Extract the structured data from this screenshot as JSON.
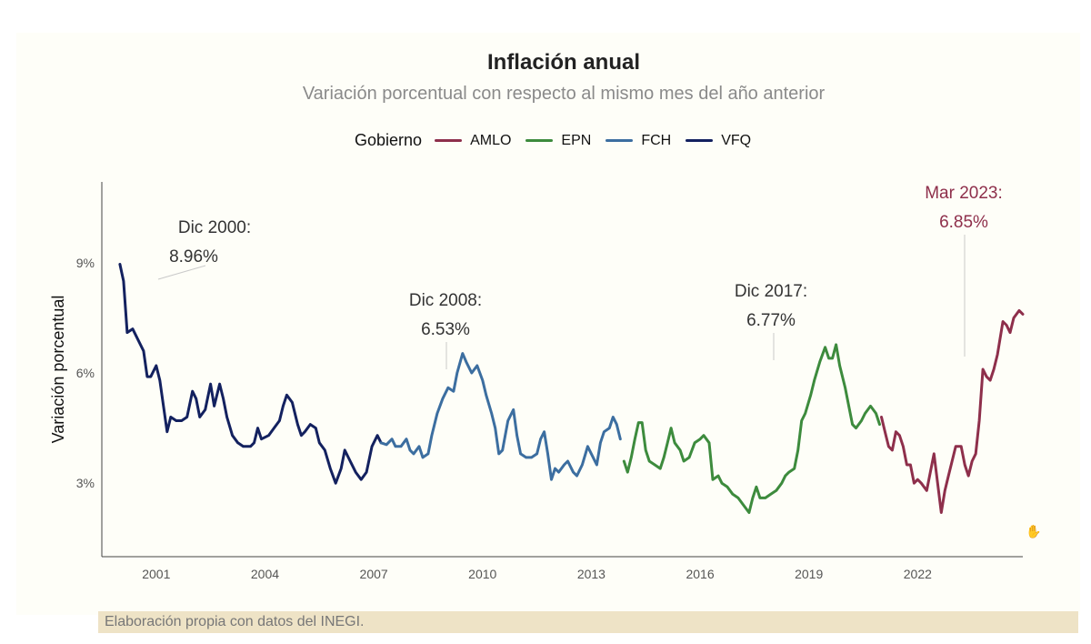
{
  "chart_data": {
    "type": "line",
    "title": "Inflación anual",
    "subtitle": "Variación porcentual con respecto al mismo mes del año anterior",
    "ylabel": "Variación porcentual",
    "xlabel": "",
    "xlim": [
      1999.5,
      2024.9
    ],
    "ylim": [
      1.0,
      11.2
    ],
    "x_ticks": [
      2001,
      2004,
      2007,
      2010,
      2013,
      2016,
      2019,
      2022
    ],
    "x_tick_labels": [
      "2001",
      "2004",
      "2007",
      "2010",
      "2013",
      "2016",
      "2019",
      "2022"
    ],
    "y_ticks": [
      3,
      6,
      9
    ],
    "y_tick_labels": [
      "3%",
      "6%",
      "9%"
    ],
    "grid": false,
    "legend": {
      "title": "Gobierno",
      "placement": "top"
    },
    "series": [
      {
        "name": "VFQ",
        "color": "#13215f",
        "points": [
          [
            2000.0,
            8.96
          ],
          [
            2000.1,
            8.5
          ],
          [
            2000.2,
            7.1
          ],
          [
            2000.35,
            7.2
          ],
          [
            2000.5,
            6.9
          ],
          [
            2000.65,
            6.6
          ],
          [
            2000.75,
            5.9
          ],
          [
            2000.85,
            5.9
          ],
          [
            2001.0,
            6.2
          ],
          [
            2001.1,
            5.8
          ],
          [
            2001.2,
            5.1
          ],
          [
            2001.3,
            4.4
          ],
          [
            2001.4,
            4.8
          ],
          [
            2001.55,
            4.7
          ],
          [
            2001.7,
            4.7
          ],
          [
            2001.85,
            4.8
          ],
          [
            2002.0,
            5.5
          ],
          [
            2002.1,
            5.3
          ],
          [
            2002.2,
            4.8
          ],
          [
            2002.35,
            5.0
          ],
          [
            2002.5,
            5.7
          ],
          [
            2002.6,
            5.1
          ],
          [
            2002.75,
            5.7
          ],
          [
            2002.85,
            5.3
          ],
          [
            2002.95,
            4.8
          ],
          [
            2003.1,
            4.3
          ],
          [
            2003.25,
            4.1
          ],
          [
            2003.4,
            4.0
          ],
          [
            2003.6,
            4.0
          ],
          [
            2003.7,
            4.1
          ],
          [
            2003.8,
            4.5
          ],
          [
            2003.9,
            4.2
          ],
          [
            2004.1,
            4.3
          ],
          [
            2004.25,
            4.5
          ],
          [
            2004.4,
            4.7
          ],
          [
            2004.5,
            5.1
          ],
          [
            2004.6,
            5.4
          ],
          [
            2004.75,
            5.2
          ],
          [
            2004.9,
            4.6
          ],
          [
            2005.0,
            4.3
          ],
          [
            2005.1,
            4.4
          ],
          [
            2005.25,
            4.6
          ],
          [
            2005.4,
            4.5
          ],
          [
            2005.5,
            4.1
          ],
          [
            2005.65,
            3.9
          ],
          [
            2005.8,
            3.4
          ],
          [
            2005.95,
            3.0
          ],
          [
            2006.1,
            3.4
          ],
          [
            2006.2,
            3.9
          ],
          [
            2006.35,
            3.6
          ],
          [
            2006.5,
            3.3
          ],
          [
            2006.65,
            3.1
          ],
          [
            2006.8,
            3.3
          ],
          [
            2006.95,
            4.0
          ],
          [
            2007.1,
            4.3
          ],
          [
            2007.2,
            4.1
          ]
        ]
      },
      {
        "name": "FCH",
        "color": "#3c6ea0",
        "points": [
          [
            2007.2,
            4.1
          ],
          [
            2007.35,
            4.05
          ],
          [
            2007.5,
            4.2
          ],
          [
            2007.6,
            4.0
          ],
          [
            2007.75,
            4.0
          ],
          [
            2007.9,
            4.2
          ],
          [
            2008.0,
            3.9
          ],
          [
            2008.1,
            3.8
          ],
          [
            2008.25,
            4.0
          ],
          [
            2008.35,
            3.7
          ],
          [
            2008.5,
            3.8
          ],
          [
            2008.6,
            4.3
          ],
          [
            2008.75,
            4.9
          ],
          [
            2008.9,
            5.3
          ],
          [
            2009.05,
            5.6
          ],
          [
            2009.2,
            5.5
          ],
          [
            2009.3,
            6.0
          ],
          [
            2009.45,
            6.53
          ],
          [
            2009.55,
            6.3
          ],
          [
            2009.7,
            6.0
          ],
          [
            2009.85,
            6.2
          ],
          [
            2010.0,
            5.8
          ],
          [
            2010.1,
            5.4
          ],
          [
            2010.25,
            4.9
          ],
          [
            2010.35,
            4.5
          ],
          [
            2010.45,
            3.8
          ],
          [
            2010.55,
            3.9
          ],
          [
            2010.7,
            4.7
          ],
          [
            2010.85,
            5.0
          ],
          [
            2010.95,
            4.3
          ],
          [
            2011.05,
            3.8
          ],
          [
            2011.2,
            3.7
          ],
          [
            2011.35,
            3.7
          ],
          [
            2011.5,
            3.8
          ],
          [
            2011.6,
            4.2
          ],
          [
            2011.7,
            4.4
          ],
          [
            2011.8,
            3.8
          ],
          [
            2011.9,
            3.1
          ],
          [
            2012.0,
            3.4
          ],
          [
            2012.1,
            3.3
          ],
          [
            2012.25,
            3.5
          ],
          [
            2012.35,
            3.6
          ],
          [
            2012.5,
            3.3
          ],
          [
            2012.6,
            3.2
          ],
          [
            2012.75,
            3.5
          ],
          [
            2012.9,
            4.0
          ],
          [
            2013.0,
            3.8
          ],
          [
            2013.15,
            3.5
          ],
          [
            2013.25,
            4.1
          ],
          [
            2013.35,
            4.4
          ],
          [
            2013.5,
            4.5
          ],
          [
            2013.6,
            4.8
          ],
          [
            2013.7,
            4.6
          ],
          [
            2013.8,
            4.2
          ]
        ]
      },
      {
        "name": "EPN",
        "color": "#3d8b3d",
        "points": [
          [
            2013.9,
            3.6
          ],
          [
            2014.0,
            3.3
          ],
          [
            2014.1,
            3.7
          ],
          [
            2014.2,
            4.2
          ],
          [
            2014.3,
            4.65
          ],
          [
            2014.4,
            4.65
          ],
          [
            2014.5,
            3.9
          ],
          [
            2014.6,
            3.6
          ],
          [
            2014.75,
            3.5
          ],
          [
            2014.9,
            3.4
          ],
          [
            2015.0,
            3.7
          ],
          [
            2015.1,
            4.1
          ],
          [
            2015.2,
            4.5
          ],
          [
            2015.3,
            4.1
          ],
          [
            2015.45,
            3.9
          ],
          [
            2015.55,
            3.6
          ],
          [
            2015.7,
            3.7
          ],
          [
            2015.85,
            4.1
          ],
          [
            2016.0,
            4.2
          ],
          [
            2016.1,
            4.3
          ],
          [
            2016.25,
            4.1
          ],
          [
            2016.35,
            3.1
          ],
          [
            2016.5,
            3.2
          ],
          [
            2016.6,
            3.0
          ],
          [
            2016.75,
            2.9
          ],
          [
            2016.9,
            2.7
          ],
          [
            2017.05,
            2.6
          ],
          [
            2017.2,
            2.4
          ],
          [
            2017.35,
            2.2
          ],
          [
            2017.45,
            2.6
          ],
          [
            2017.55,
            2.9
          ],
          [
            2017.65,
            2.6
          ],
          [
            2017.8,
            2.6
          ],
          [
            2017.95,
            2.7
          ],
          [
            2018.1,
            2.8
          ],
          [
            2018.25,
            3.0
          ],
          [
            2018.35,
            3.2
          ],
          [
            2018.45,
            3.3
          ],
          [
            2018.6,
            3.4
          ],
          [
            2018.7,
            3.9
          ],
          [
            2018.8,
            4.7
          ],
          [
            2018.9,
            4.9
          ],
          [
            2019.05,
            5.4
          ],
          [
            2019.15,
            5.8
          ],
          [
            2019.3,
            6.3
          ],
          [
            2019.45,
            6.7
          ],
          [
            2019.55,
            6.4
          ],
          [
            2019.65,
            6.4
          ],
          [
            2019.75,
            6.77
          ],
          [
            2019.85,
            6.2
          ],
          [
            2020.0,
            5.6
          ],
          [
            2020.1,
            5.1
          ],
          [
            2020.2,
            4.6
          ],
          [
            2020.3,
            4.5
          ],
          [
            2020.45,
            4.7
          ],
          [
            2020.55,
            4.9
          ],
          [
            2020.7,
            5.1
          ],
          [
            2020.85,
            4.9
          ],
          [
            2020.95,
            4.6
          ]
        ]
      },
      {
        "name": "AMLO",
        "color": "#8e2f4b",
        "points": [
          [
            2021.0,
            4.8
          ],
          [
            2021.1,
            4.4
          ],
          [
            2021.2,
            4.0
          ],
          [
            2021.3,
            3.9
          ],
          [
            2021.4,
            4.4
          ],
          [
            2021.5,
            4.3
          ],
          [
            2021.6,
            4.0
          ],
          [
            2021.7,
            3.5
          ],
          [
            2021.8,
            3.5
          ],
          [
            2021.9,
            3.0
          ],
          [
            2022.0,
            3.1
          ],
          [
            2022.1,
            3.0
          ],
          [
            2022.25,
            2.8
          ],
          [
            2022.35,
            3.3
          ],
          [
            2022.45,
            3.8
          ],
          [
            2022.55,
            3.0
          ],
          [
            2022.65,
            2.2
          ],
          [
            2022.75,
            2.8
          ],
          [
            2022.85,
            3.2
          ],
          [
            2022.95,
            3.6
          ],
          [
            2023.05,
            4.0
          ],
          [
            2023.2,
            4.0
          ],
          [
            2023.3,
            3.5
          ],
          [
            2023.4,
            3.2
          ],
          [
            2023.5,
            3.6
          ],
          [
            2023.6,
            3.8
          ],
          [
            2023.7,
            4.7
          ],
          [
            2023.8,
            6.1
          ],
          [
            2023.9,
            5.9
          ],
          [
            2024.0,
            5.8
          ],
          [
            2024.1,
            6.1
          ],
          [
            2024.2,
            6.5
          ],
          [
            2024.35,
            7.4
          ],
          [
            2024.45,
            7.3
          ],
          [
            2024.55,
            7.1
          ],
          [
            2024.65,
            7.5
          ],
          [
            2024.8,
            7.7
          ],
          [
            2024.9,
            7.6
          ]
        ]
      }
    ],
    "annotations": [
      {
        "label": "Dic 2000:",
        "value": "8.96%",
        "x": 2000.0,
        "y": 8.96,
        "color": "#333333"
      },
      {
        "label": "Dic 2008:",
        "value": "6.53%",
        "x": 2008.5,
        "y": 6.53,
        "color": "#333333"
      },
      {
        "label": "Dic 2017:",
        "value": "6.77%",
        "x": 2017.5,
        "y": 6.77,
        "color": "#333333"
      },
      {
        "label": "Mar 2023:",
        "value": "6.85%",
        "x": 2023.2,
        "y": 6.85,
        "color": "#8e2f4b"
      }
    ]
  },
  "footer": {
    "source": "Elaboración propia con datos del INEGI."
  }
}
